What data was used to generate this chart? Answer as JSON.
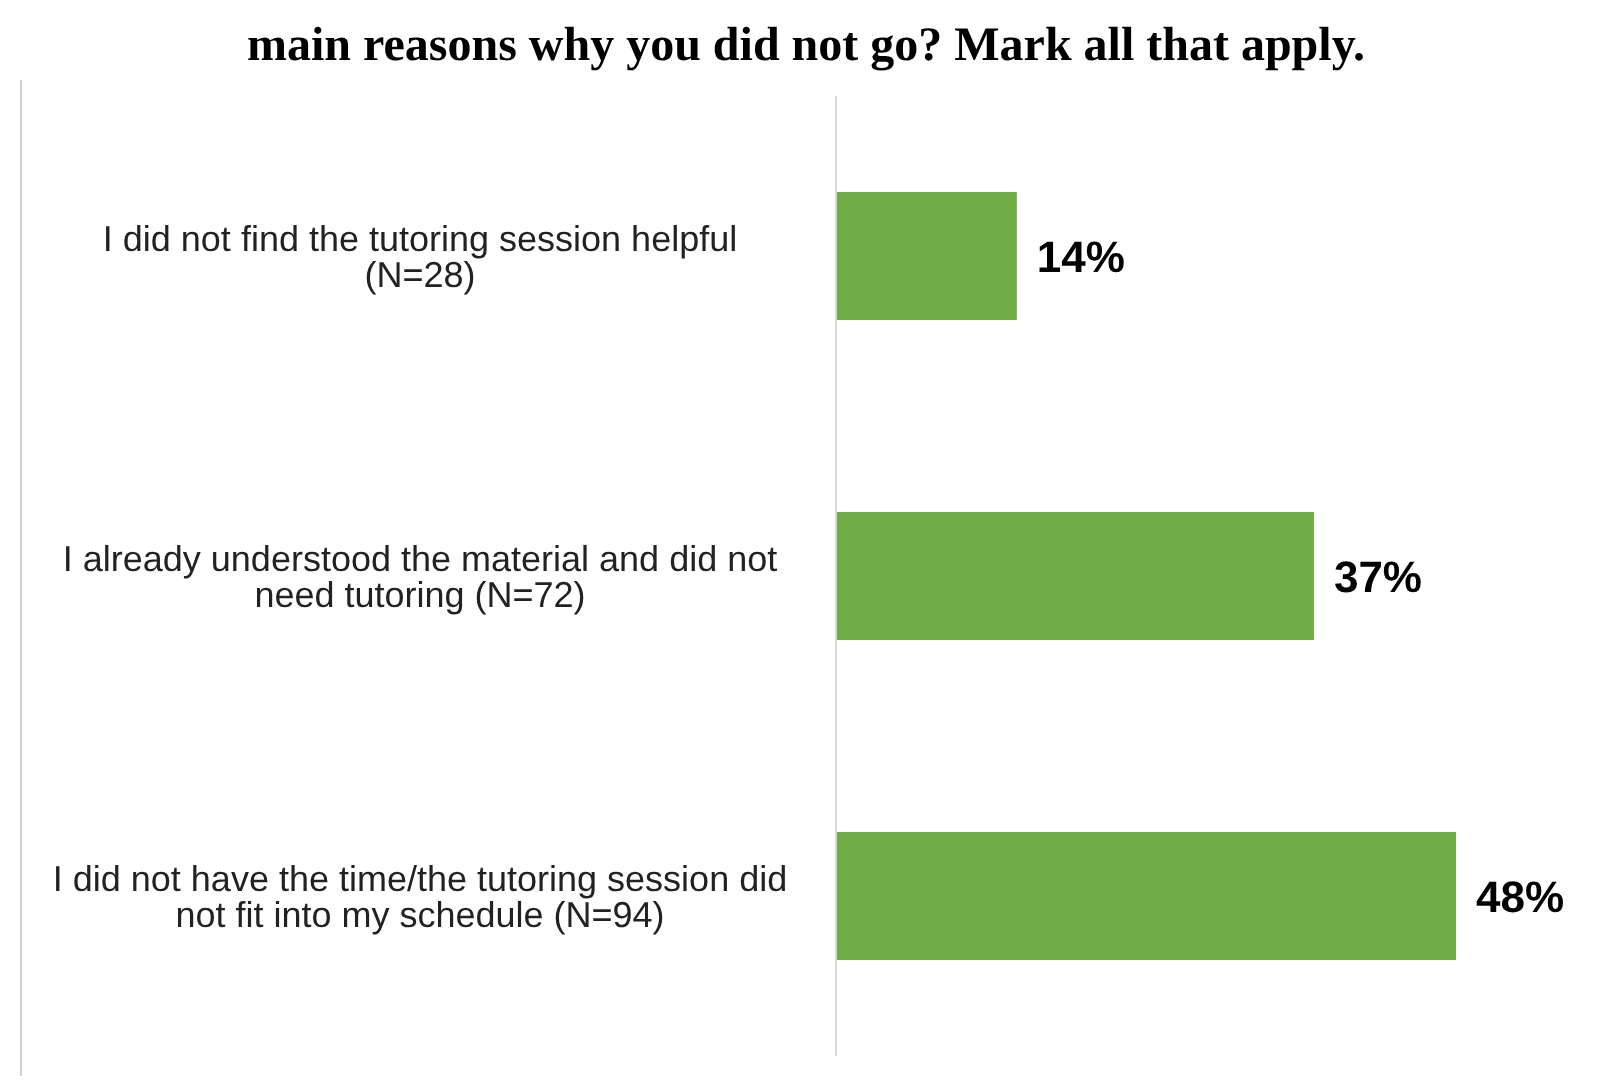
{
  "chart_data": {
    "type": "bar",
    "orientation": "horizontal",
    "title": "main reasons why you did not go? Mark all that apply.",
    "categories": [
      "I did not find the tutoring session helpful (N=28)",
      "I already understood the material and did not need tutoring (N=72)",
      "I did not have the time/the tutoring session did not fit into my schedule (N=94)"
    ],
    "values": [
      14,
      37,
      48
    ],
    "value_labels": [
      "14%",
      "37%",
      "48%"
    ],
    "color": "#70ad47"
  }
}
